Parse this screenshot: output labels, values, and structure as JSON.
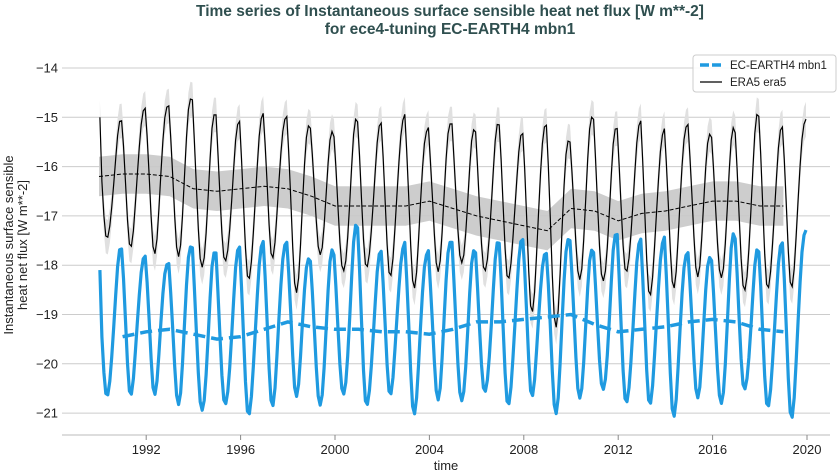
{
  "chart_data": {
    "type": "line",
    "title": "Time series of Instantaneous surface sensible heat net flux [W m**-2]",
    "subtitle": "for ece4-tuning EC-EARTH4 mbn1",
    "xlabel": "time",
    "ylabel": [
      "Instantaneous surface sensible",
      "heat net flux [W m**-2]"
    ],
    "xlim": [
      1988.4,
      2021.0
    ],
    "ylim": [
      -21.45,
      -13.6
    ],
    "xticks": [
      1992,
      1996,
      2000,
      2004,
      2008,
      2012,
      2016,
      2020
    ],
    "yticks": [
      -14,
      -15,
      -16,
      -17,
      -18,
      -19,
      -20,
      -21
    ],
    "grid": "horizontal",
    "legend_placement": "top-right",
    "years": [
      1990,
      1991,
      1992,
      1993,
      1994,
      1995,
      1996,
      1997,
      1998,
      1999,
      2000,
      2001,
      2002,
      2003,
      2004,
      2005,
      2006,
      2007,
      2008,
      2009,
      2010,
      2011,
      2012,
      2013,
      2014,
      2015,
      2016,
      2017,
      2018,
      2019
    ],
    "series": [
      {
        "name": "EC-EARTH4 mbn1",
        "color": "#1f9ae0",
        "style": "thick solid monthly + dashed running mean",
        "annual_max": [
          -17.7,
          -17.8,
          -17.9,
          -17.6,
          -17.8,
          -17.75,
          -17.6,
          -17.5,
          -17.8,
          -17.7,
          -17.25,
          -17.8,
          -17.6,
          -17.7,
          -17.5,
          -17.75,
          -17.6,
          -17.5,
          -17.7,
          -17.4,
          -17.7,
          -17.45,
          -17.6,
          -17.5,
          -17.7,
          -17.8,
          -17.4,
          -17.75,
          -17.6,
          -17.3
        ],
        "annual_min": [
          -20.7,
          -20.6,
          -20.55,
          -20.8,
          -21.0,
          -20.9,
          -21.05,
          -20.8,
          -20.6,
          -20.85,
          -20.7,
          -20.9,
          -20.6,
          -20.95,
          -20.7,
          -20.8,
          -20.65,
          -20.85,
          -20.6,
          -20.95,
          -20.7,
          -20.6,
          -20.85,
          -20.8,
          -21.0,
          -20.65,
          -20.85,
          -20.6,
          -20.9,
          -21.05
        ],
        "start_value": -18.1,
        "running_mean_x": [
          1991,
          1992,
          1993,
          1994,
          1995,
          1996,
          1997,
          1998,
          1999,
          2000,
          2001,
          2002,
          2003,
          2004,
          2005,
          2006,
          2007,
          2008,
          2009,
          2010,
          2011,
          2012,
          2013,
          2014,
          2015,
          2016,
          2017,
          2018,
          2019
        ],
        "running_mean": [
          -19.45,
          -19.35,
          -19.3,
          -19.4,
          -19.5,
          -19.45,
          -19.3,
          -19.15,
          -19.25,
          -19.3,
          -19.3,
          -19.35,
          -19.35,
          -19.4,
          -19.3,
          -19.15,
          -19.15,
          -19.1,
          -19.05,
          -19.0,
          -19.2,
          -19.35,
          -19.3,
          -19.25,
          -19.15,
          -19.1,
          -19.15,
          -19.3,
          -19.35
        ]
      },
      {
        "name": "ERA5 era5",
        "color": "#000000",
        "style": "thin solid monthly + dashed running mean with grey spread bands",
        "annual_max": [
          -15.1,
          -14.8,
          -14.7,
          -14.6,
          -15.0,
          -15.2,
          -15.0,
          -14.95,
          -15.1,
          -15.3,
          -15.1,
          -15.2,
          -15.0,
          -15.2,
          -15.1,
          -15.3,
          -15.2,
          -15.35,
          -15.1,
          -15.4,
          -15.0,
          -15.3,
          -15.2,
          -15.3,
          -15.1,
          -15.3,
          -15.25,
          -15.0,
          -15.25,
          -15.05
        ],
        "annual_min": [
          -17.5,
          -17.6,
          -17.7,
          -17.8,
          -18.1,
          -18.0,
          -18.3,
          -17.8,
          -18.5,
          -17.8,
          -18.2,
          -18.1,
          -18.2,
          -18.4,
          -18.1,
          -18.0,
          -18.2,
          -18.3,
          -18.9,
          -19.2,
          -18.3,
          -18.4,
          -18.2,
          -18.6,
          -18.4,
          -18.2,
          -18.3,
          -18.6,
          -18.5,
          -18.4
        ],
        "start_value": -15.0,
        "running_mean_x": [
          1990,
          1991,
          1992,
          1993,
          1994,
          1995,
          1996,
          1997,
          1998,
          1999,
          2000,
          2001,
          2002,
          2003,
          2004,
          2005,
          2006,
          2007,
          2008,
          2009,
          2010,
          2011,
          2012,
          2013,
          2014,
          2015,
          2016,
          2017,
          2018,
          2019
        ],
        "running_mean": [
          -16.2,
          -16.15,
          -16.15,
          -16.2,
          -16.45,
          -16.5,
          -16.45,
          -16.4,
          -16.45,
          -16.6,
          -16.8,
          -16.8,
          -16.8,
          -16.8,
          -16.7,
          -16.85,
          -17.0,
          -17.1,
          -17.2,
          -17.3,
          -16.85,
          -16.9,
          -17.1,
          -16.95,
          -16.9,
          -16.8,
          -16.7,
          -16.7,
          -16.8,
          -16.8
        ],
        "running_mean_spread": 0.4,
        "monthly_spread": 0.35
      }
    ]
  },
  "colors": {
    "title": "#2f4f4f",
    "grid": "#cccccc",
    "band_dark": "#c8c8c8",
    "band_light": "#e0e0e0"
  }
}
